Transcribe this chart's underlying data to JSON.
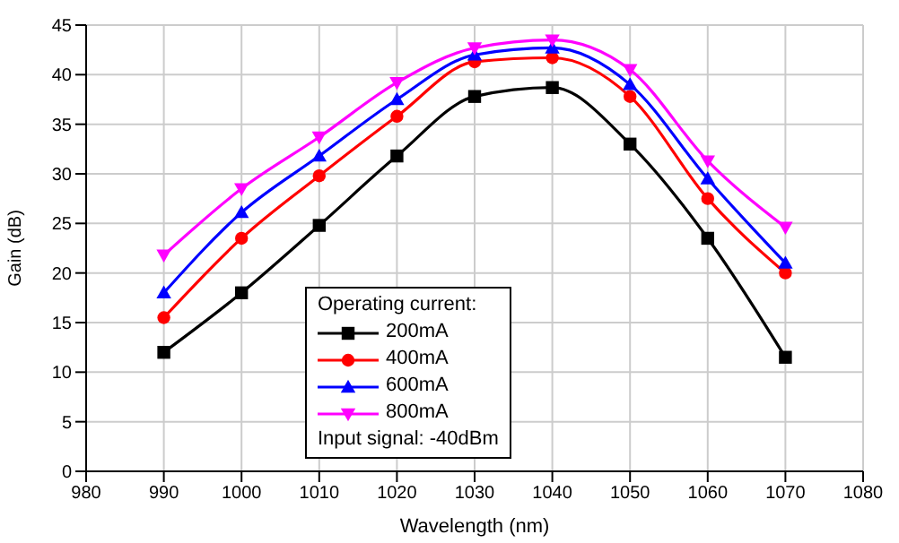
{
  "chart_data": {
    "type": "line",
    "xlabel": "Wavelength (nm)",
    "ylabel": "Gain (dB)",
    "legend_title": "Operating current:",
    "annotations": [
      "Input signal: -40dBm"
    ],
    "x": [
      990,
      1000,
      1010,
      1020,
      1030,
      1040,
      1050,
      1060,
      1070
    ],
    "series": [
      {
        "name": "200mA",
        "color": "#000000",
        "marker": "square",
        "values": [
          12,
          18,
          24.8,
          31.8,
          37.8,
          38.7,
          33,
          23.5,
          11.5
        ]
      },
      {
        "name": "400mA",
        "color": "#ff0000",
        "marker": "circle",
        "values": [
          15.5,
          23.5,
          29.8,
          35.8,
          41.3,
          41.7,
          37.8,
          27.5,
          20
        ]
      },
      {
        "name": "600mA",
        "color": "#0000ff",
        "marker": "triangle",
        "values": [
          18,
          26.1,
          31.8,
          37.5,
          42,
          42.7,
          39,
          29.5,
          21
        ]
      },
      {
        "name": "800mA",
        "color": "#ff00ff",
        "marker": "triangle-down",
        "values": [
          21.8,
          28.5,
          33.7,
          39.2,
          42.7,
          43.5,
          40.5,
          31.3,
          24.6
        ]
      }
    ],
    "xlim": [
      980,
      1080
    ],
    "xticks": [
      980,
      990,
      1000,
      1010,
      1020,
      1030,
      1040,
      1050,
      1060,
      1070,
      1080
    ],
    "ylim": [
      0,
      45
    ],
    "yticks": [
      0,
      5,
      10,
      15,
      20,
      25,
      30,
      35,
      40,
      45
    ],
    "grid": true,
    "legend": "bottom",
    "line_style": "solid"
  }
}
